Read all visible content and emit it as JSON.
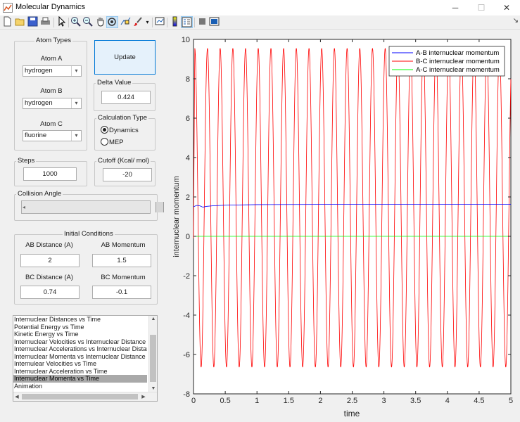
{
  "window": {
    "title": "Molecular Dynamics",
    "controls": [
      "─",
      "☐",
      "✕"
    ]
  },
  "toolbar": {
    "icons": [
      "new-file-icon",
      "open-file-icon",
      "save-icon",
      "print-icon",
      "pointer-icon",
      "zoom-in-icon",
      "zoom-out-icon",
      "pan-icon",
      "rotate-icon",
      "data-cursor-icon",
      "brush-icon",
      "dropdown-arrow-icon",
      "link-plot-icon",
      "colorbar-icon",
      "legend-icon",
      "hide-plot-tools-icon",
      "show-plot-tools-icon"
    ],
    "dock_arrow": "↘"
  },
  "atom_types": {
    "title": "Atom Types",
    "atom_a_label": "Atom A",
    "atom_a_value": "hydrogen",
    "atom_b_label": "Atom B",
    "atom_b_value": "hydrogen",
    "atom_c_label": "Atom C",
    "atom_c_value": "fluorine"
  },
  "update_label": "Update",
  "delta": {
    "title": "Delta Value",
    "value": "0.424"
  },
  "calc_type": {
    "title": "Calculation Type",
    "dynamics": "Dynamics",
    "mep": "MEP",
    "selected": "Dynamics"
  },
  "steps": {
    "title": "Steps",
    "value": "1000"
  },
  "cutoff": {
    "title": "Cutoff (Kcal/ mol)",
    "value": "-20"
  },
  "collision": {
    "title": "Collision Angle"
  },
  "initial": {
    "title": "Initial Conditions",
    "ab_dist_label": "AB Distance (A)",
    "ab_dist_value": "2",
    "ab_mom_label": "AB Momentum",
    "ab_mom_value": "1.5",
    "bc_dist_label": "BC Distance (A)",
    "bc_dist_value": "0.74",
    "bc_mom_label": "BC Momentum",
    "bc_mom_value": "-0.1"
  },
  "plot_list": {
    "items": [
      "Internuclear Distances vs Time",
      "Potential Energy vs Time",
      "Kinetic Energy vs Time",
      "Internuclear Velocities vs Internuclear Distance",
      "Internuclear Accelerations vs Internuclear Distance",
      "Internuclear Momenta vs Internuclear Distance",
      "Internulear Velocities vs Time",
      "Internuclear Acceleration vs Time",
      "Internuclear Momenta vs Time",
      "Animation"
    ],
    "selected_index": 8
  },
  "chart_data": {
    "type": "line",
    "title": "",
    "xlabel": "time",
    "ylabel": "internuclear momentum",
    "xlim": [
      0,
      5
    ],
    "ylim": [
      -8,
      10
    ],
    "x_ticks": [
      "0",
      "0.5",
      "1",
      "1.5",
      "2",
      "2.5",
      "3",
      "3.5",
      "4",
      "4.5",
      "5"
    ],
    "y_ticks": [
      "-8",
      "-6",
      "-4",
      "-2",
      "0",
      "2",
      "4",
      "6",
      "8",
      "10"
    ],
    "legend_position": "top-right",
    "grid": false,
    "series": [
      {
        "name": "A-B internuclear momentum",
        "color": "#0000ff",
        "x": [
          0,
          0.05,
          0.1,
          0.15,
          0.2,
          0.3,
          0.5,
          1,
          2,
          3,
          4,
          5
        ],
        "y": [
          1.5,
          1.57,
          1.55,
          1.48,
          1.52,
          1.55,
          1.58,
          1.61,
          1.62,
          1.62,
          1.62,
          1.62
        ]
      },
      {
        "name": "B-C internuclear momentum",
        "color": "#ff0000",
        "oscillation": {
          "center": 1.45,
          "amplitude": 8.1,
          "period": 0.2,
          "x_start": 0,
          "x_end": 5,
          "max": 9.55,
          "min": -6.65
        }
      },
      {
        "name": "A-C internuclear momentum",
        "color": "#00ff00",
        "x": [
          0,
          5
        ],
        "y": [
          0,
          0
        ]
      }
    ]
  }
}
